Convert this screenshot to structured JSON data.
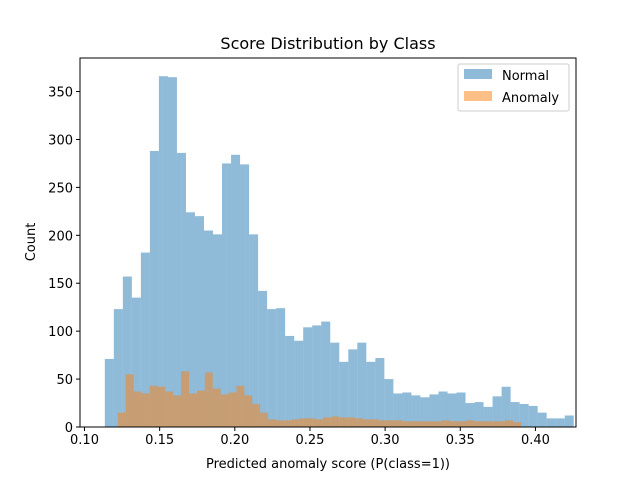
{
  "chart_data": {
    "type": "bar",
    "title": "Score Distribution by Class",
    "xlabel": "Predicted anomaly score (P(class=1))",
    "ylabel": "Count",
    "xlim": [
      0.097,
      0.427
    ],
    "ylim": [
      0,
      385
    ],
    "xticks": [
      0.1,
      0.15,
      0.2,
      0.25,
      0.3,
      0.35,
      0.4
    ],
    "xtick_labels": [
      "0.10",
      "0.15",
      "0.20",
      "0.25",
      "0.30",
      "0.35",
      "0.40"
    ],
    "yticks": [
      0,
      50,
      100,
      150,
      200,
      250,
      300,
      350
    ],
    "ytick_labels": [
      "0",
      "50",
      "100",
      "150",
      "200",
      "250",
      "300",
      "350"
    ],
    "grid": false,
    "legend_position": "top-right",
    "series": [
      {
        "name": "Normal",
        "color": "#1f77b4",
        "opacity": 0.5,
        "bin_start": 0.1135,
        "bin_width": 0.006,
        "counts": [
          71,
          123,
          157,
          135,
          182,
          288,
          366,
          365,
          286,
          224,
          220,
          205,
          201,
          275,
          284,
          274,
          201,
          142,
          123,
          124,
          95,
          90,
          104,
          106,
          110,
          88,
          68,
          81,
          88,
          68,
          72,
          50,
          35,
          36,
          33,
          31,
          34,
          37,
          35,
          36,
          25,
          26,
          21,
          32,
          42,
          26,
          24,
          22,
          15,
          9,
          9,
          12
        ]
      },
      {
        "name": "Anomaly",
        "color": "#ff7f0e",
        "opacity": 0.5,
        "bin_start": 0.1222,
        "bin_width": 0.00526,
        "counts": [
          15,
          55,
          37,
          35,
          43,
          42,
          37,
          33,
          58,
          35,
          38,
          57,
          40,
          34,
          36,
          43,
          33,
          24,
          15,
          8,
          7,
          7,
          8,
          9,
          9,
          8,
          10,
          11,
          10,
          10,
          9,
          8,
          8,
          7,
          7,
          7,
          6,
          6,
          6,
          6,
          6,
          7,
          6,
          6,
          7,
          6,
          6,
          6,
          6,
          7,
          5
        ]
      }
    ]
  }
}
